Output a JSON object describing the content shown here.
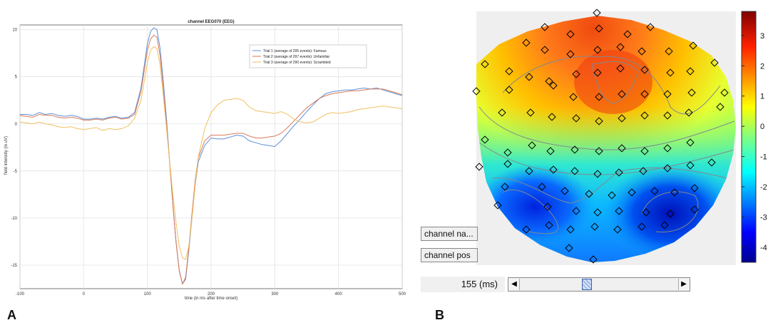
{
  "panels": {
    "a_label": "A",
    "b_label": "B"
  },
  "chart_data": [
    {
      "type": "line",
      "title": "channel EEG070 (EEG)",
      "xlabel": "time (in ms after time onset)",
      "ylabel": "field intensity (in uV)",
      "xlim": [
        -100,
        500
      ],
      "ylim": [
        -17.5,
        10.5
      ],
      "xticks": [
        -100,
        0,
        100,
        200,
        300,
        400,
        500
      ],
      "yticks": [
        -15,
        -10,
        -5,
        0,
        5,
        10
      ],
      "grid": true,
      "legend_position": "top-right",
      "series": [
        {
          "name": "Trial 1 (average of 295 events): Famous",
          "color": "#5b8fd6",
          "x": [
            -100,
            -90,
            -80,
            -70,
            -60,
            -50,
            -40,
            -30,
            -20,
            -10,
            0,
            10,
            20,
            30,
            40,
            50,
            60,
            70,
            80,
            90,
            100,
            105,
            110,
            115,
            120,
            125,
            130,
            135,
            140,
            145,
            150,
            155,
            160,
            165,
            170,
            175,
            180,
            190,
            200,
            210,
            220,
            230,
            240,
            250,
            260,
            270,
            280,
            290,
            300,
            310,
            320,
            330,
            340,
            350,
            360,
            370,
            380,
            390,
            400,
            410,
            420,
            430,
            440,
            450,
            460,
            470,
            480,
            490,
            500
          ],
          "y": [
            1.0,
            1.0,
            0.9,
            1.2,
            1.0,
            1.1,
            0.9,
            0.8,
            0.9,
            0.8,
            0.5,
            0.5,
            0.6,
            0.5,
            0.7,
            0.8,
            0.6,
            0.7,
            1.2,
            3.8,
            8.5,
            9.8,
            10.2,
            10.0,
            8.0,
            4.5,
            0.5,
            -4.0,
            -8.5,
            -12.5,
            -15.5,
            -17.0,
            -16.5,
            -13.5,
            -10.0,
            -6.5,
            -4.0,
            -2.3,
            -1.5,
            -1.6,
            -1.6,
            -1.4,
            -1.2,
            -1.3,
            -1.8,
            -2.0,
            -2.2,
            -2.3,
            -2.4,
            -1.8,
            -1.0,
            -0.2,
            0.5,
            1.3,
            2.0,
            2.7,
            3.2,
            3.4,
            3.5,
            3.6,
            3.6,
            3.7,
            3.8,
            3.7,
            3.8,
            3.6,
            3.4,
            3.2,
            3.0
          ]
        },
        {
          "name": "Trial 2 (average of 297 events): Unfamiliar",
          "color": "#d97a5a",
          "x": [
            -100,
            -90,
            -80,
            -70,
            -60,
            -50,
            -40,
            -30,
            -20,
            -10,
            0,
            10,
            20,
            30,
            40,
            50,
            60,
            70,
            80,
            90,
            100,
            105,
            110,
            115,
            120,
            125,
            130,
            135,
            140,
            145,
            150,
            155,
            160,
            165,
            170,
            175,
            180,
            190,
            200,
            210,
            220,
            230,
            240,
            250,
            260,
            270,
            280,
            290,
            300,
            310,
            320,
            330,
            340,
            350,
            360,
            370,
            380,
            390,
            400,
            410,
            420,
            430,
            440,
            450,
            460,
            470,
            480,
            490,
            500
          ],
          "y": [
            0.9,
            0.8,
            0.7,
            1.0,
            0.9,
            0.9,
            0.7,
            0.6,
            0.7,
            0.6,
            0.4,
            0.4,
            0.5,
            0.4,
            0.6,
            0.7,
            0.5,
            0.6,
            1.0,
            3.4,
            7.8,
            9.0,
            9.4,
            9.2,
            7.2,
            3.8,
            0.0,
            -4.2,
            -8.6,
            -12.6,
            -15.6,
            -17.0,
            -16.3,
            -13.2,
            -9.5,
            -6.0,
            -3.6,
            -1.8,
            -1.2,
            -1.2,
            -1.2,
            -1.1,
            -1.0,
            -1.0,
            -1.3,
            -1.5,
            -1.5,
            -1.4,
            -1.3,
            -1.0,
            -0.4,
            0.3,
            1.0,
            1.7,
            2.2,
            2.7,
            3.0,
            3.2,
            3.3,
            3.4,
            3.5,
            3.5,
            3.6,
            3.7,
            3.7,
            3.7,
            3.5,
            3.3,
            3.1
          ]
        },
        {
          "name": "Trial 3 (average of 290 events): Scrambled",
          "color": "#f0c060",
          "x": [
            -100,
            -90,
            -80,
            -70,
            -60,
            -50,
            -40,
            -30,
            -20,
            -10,
            0,
            10,
            20,
            30,
            40,
            50,
            60,
            70,
            80,
            90,
            100,
            105,
            110,
            115,
            120,
            125,
            130,
            135,
            140,
            145,
            150,
            155,
            160,
            165,
            170,
            175,
            180,
            190,
            200,
            210,
            220,
            230,
            240,
            250,
            260,
            270,
            280,
            290,
            300,
            310,
            320,
            330,
            340,
            350,
            360,
            370,
            380,
            390,
            400,
            410,
            420,
            430,
            440,
            450,
            460,
            470,
            480,
            490,
            500
          ],
          "y": [
            0.2,
            0.1,
            0.0,
            0.2,
            0.0,
            -0.1,
            -0.3,
            -0.4,
            -0.3,
            -0.5,
            -0.6,
            -0.5,
            -0.4,
            -0.7,
            -0.5,
            -0.6,
            -0.5,
            -0.2,
            0.6,
            2.5,
            6.5,
            7.8,
            8.2,
            8.0,
            6.2,
            3.0,
            -0.5,
            -4.0,
            -7.5,
            -10.5,
            -13.0,
            -14.2,
            -14.4,
            -13.0,
            -10.0,
            -6.5,
            -3.5,
            -0.5,
            1.2,
            2.0,
            2.5,
            2.6,
            2.7,
            2.5,
            1.8,
            1.4,
            1.3,
            1.2,
            1.1,
            1.3,
            1.0,
            0.5,
            0.2,
            0.1,
            0.2,
            0.6,
            1.0,
            1.2,
            1.1,
            1.2,
            1.3,
            1.5,
            1.6,
            1.7,
            1.8,
            1.9,
            1.8,
            1.7,
            1.6
          ]
        }
      ]
    },
    {
      "type": "heatmap",
      "title": "",
      "colorbar_ticks": [
        3,
        2,
        1,
        0,
        -1,
        -2,
        -3,
        -4
      ],
      "colorbar_range": [
        -4.5,
        3.8
      ],
      "colormap": "jet"
    }
  ],
  "controls": {
    "channel_name_button": "channel na...",
    "channel_pos_button": "channel pos",
    "time_value": "155 (ms)",
    "slider_fraction": 0.42
  },
  "icons": {
    "slider_left": "arrow-left-icon",
    "slider_right": "arrow-right-icon"
  }
}
